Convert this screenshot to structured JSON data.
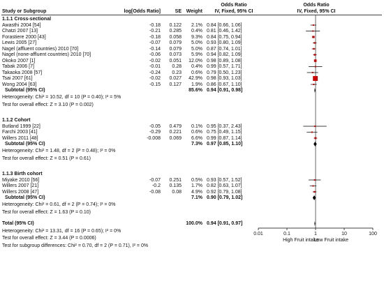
{
  "header": {
    "study": "Study or Subgroup",
    "logor": "log[Odds Ratio]",
    "se": "SE",
    "weight": "Weight",
    "or_title": "Odds Ratio",
    "or_sub": "IV, Fixed, 95% CI",
    "plot_title": "Odds Ratio",
    "plot_sub": "IV, Fixed, 95% CI"
  },
  "groups": [
    {
      "title": "1.1.1 Cross-sectional",
      "studies": [
        {
          "name": "Awasthi 2004 [54]",
          "logor": "-0.18",
          "se": "0.122",
          "weight": "2.1%",
          "ci": "0.84 [0.66, 1.06]"
        },
        {
          "name": "Chatzi 2007 [13]",
          "logor": "-0.21",
          "se": "0.285",
          "weight": "0.4%",
          "ci": "0.81 [0.46, 1.42]"
        },
        {
          "name": "Forastiere 2000 [43]",
          "logor": "-0.18",
          "se": "0.058",
          "weight": "9.3%",
          "ci": "0.84 [0.75, 0.94]"
        },
        {
          "name": "Lewis 2005 [27]",
          "logor": "-0.07",
          "se": "0.079",
          "weight": "5.0%",
          "ci": "0.93 [0.80, 1.09]"
        },
        {
          "name": "Nagel (affluent countries) 2010 [70]",
          "logor": "-0.14",
          "se": "0.079",
          "weight": "5.0%",
          "ci": "0.87 [0.74, 1.01]"
        },
        {
          "name": "Nagel (none-affluent countries) 2010 [70]",
          "logor": "-0.06",
          "se": "0.073",
          "weight": "5.9%",
          "ci": "0.94 [0.82, 1.09]"
        },
        {
          "name": "Okoko 2007 [1]",
          "logor": "-0.02",
          "se": "0.051",
          "weight": "12.0%",
          "ci": "0.98 [0.89, 1.08]"
        },
        {
          "name": "Tabak 2006 [7]",
          "logor": "-0.01",
          "se": "0.28",
          "weight": "0.4%",
          "ci": "0.99 [0.57, 1.71]"
        },
        {
          "name": "Takaoka 2008 [57]",
          "logor": "-0.24",
          "se": "0.23",
          "weight": "0.6%",
          "ci": "0.79 [0.50, 1.23]"
        },
        {
          "name": "Tsai 2007 [61]",
          "logor": "-0.02",
          "se": "0.027",
          "weight": "42.9%",
          "ci": "0.98 [0.93, 1.03]"
        },
        {
          "name": "Wong 2004 [63]",
          "logor": "-0.15",
          "se": "0.127",
          "weight": "1.9%",
          "ci": "0.86 [0.67, 1.10]"
        }
      ],
      "subtotal": {
        "label": "Subtotal (95% CI)",
        "weight": "85.6%",
        "ci": "0.94 [0.91, 0.98]"
      },
      "heterogeneity": "Heterogeneity: Chi² = 10.52, df = 10 (P = 0.40); I² = 5%",
      "effect": "Test for overall effect: Z = 3.10 (P = 0.002)"
    },
    {
      "title": "1.1.2 Cohort",
      "studies": [
        {
          "name": "Butland 1999 [22]",
          "logor": "-0.05",
          "se": "0.479",
          "weight": "0.1%",
          "ci": "0.95 [0.37, 2.43]"
        },
        {
          "name": "Farchi 2003 [41]",
          "logor": "-0.29",
          "se": "0.221",
          "weight": "0.6%",
          "ci": "0.75 [0.49, 1.15]"
        },
        {
          "name": "Willers 2011 [48]",
          "logor": "-0.008",
          "se": "0.069",
          "weight": "6.6%",
          "ci": "0.99 [0.87, 1.14]"
        }
      ],
      "subtotal": {
        "label": "Subtotal (95% CI)",
        "weight": "7.3%",
        "ci": "0.97 [0.85, 1.10]"
      },
      "heterogeneity": "Heterogeneity: Chi² = 1.48, df = 2 (P = 0.48); I² = 0%",
      "effect": "Test for overall effect: Z = 0.51 (P = 0.61)"
    },
    {
      "title": "1.1.3 Birth cohort",
      "studies": [
        {
          "name": "Miyake 2010 [56]",
          "logor": "-0.07",
          "se": "0.251",
          "weight": "0.5%",
          "ci": "0.93 [0.57, 1.52]"
        },
        {
          "name": "Willers 2007 [21]",
          "logor": "-0.2",
          "se": "0.135",
          "weight": "1.7%",
          "ci": "0.82 [0.63, 1.07]"
        },
        {
          "name": "Willers 2008 [47]",
          "logor": "-0.08",
          "se": "0.08",
          "weight": "4.9%",
          "ci": "0.92 [0.79, 1.08]"
        }
      ],
      "subtotal": {
        "label": "Subtotal (95% CI)",
        "weight": "7.1%",
        "ci": "0.90 [0.79, 1.02]"
      },
      "heterogeneity": "Heterogeneity: Chi² = 0.61, df = 2 (P = 0.74); I² = 0%",
      "effect": "Test for overall effect: Z = 1.63 (P = 0.10)"
    }
  ],
  "total": {
    "label": "Total (95% CI)",
    "weight": "100.0%",
    "ci": "0.94 [0.91, 0.97]",
    "heterogeneity": "Heterogeneity: Chi² = 13.31, df = 16 (P = 0.65); I² = 0%",
    "effect": "Test for overall effect: Z = 3.44 (P = 0.0006)",
    "subgroup": "Test for subgroup differences: Chi² = 0.70, df = 2 (P = 0.71), I² = 0%"
  },
  "colors": {
    "square": "#cc0000",
    "diamond": "#000000",
    "line": "#000000"
  },
  "chart_data": {
    "type": "scatter",
    "scale": "log",
    "xlim": [
      0.01,
      100
    ],
    "ticks": [
      "0.01",
      "0.1",
      "1",
      "10",
      "100"
    ],
    "tick_values": [
      0.01,
      0.1,
      1,
      10,
      100
    ],
    "left_label": "High Fruit intake",
    "right_label": "Low Fruit intake",
    "studies": [
      {
        "name": "Awasthi 2004 [54]",
        "or": 0.84,
        "lo": 0.66,
        "hi": 1.06,
        "weight": 2.1
      },
      {
        "name": "Chatzi 2007 [13]",
        "or": 0.81,
        "lo": 0.46,
        "hi": 1.42,
        "weight": 0.4
      },
      {
        "name": "Forastiere 2000 [43]",
        "or": 0.84,
        "lo": 0.75,
        "hi": 0.94,
        "weight": 9.3
      },
      {
        "name": "Lewis 2005 [27]",
        "or": 0.93,
        "lo": 0.8,
        "hi": 1.09,
        "weight": 5.0
      },
      {
        "name": "Nagel (affluent countries) 2010 [70]",
        "or": 0.87,
        "lo": 0.74,
        "hi": 1.01,
        "weight": 5.0
      },
      {
        "name": "Nagel (none-affluent countries) 2010 [70]",
        "or": 0.94,
        "lo": 0.82,
        "hi": 1.09,
        "weight": 5.9
      },
      {
        "name": "Okoko 2007 [1]",
        "or": 0.98,
        "lo": 0.89,
        "hi": 1.08,
        "weight": 12.0
      },
      {
        "name": "Tabak 2006 [7]",
        "or": 0.99,
        "lo": 0.57,
        "hi": 1.71,
        "weight": 0.4
      },
      {
        "name": "Takaoka 2008 [57]",
        "or": 0.79,
        "lo": 0.5,
        "hi": 1.23,
        "weight": 0.6
      },
      {
        "name": "Tsai 2007 [61]",
        "or": 0.98,
        "lo": 0.93,
        "hi": 1.03,
        "weight": 42.9
      },
      {
        "name": "Wong 2004 [63]",
        "or": 0.86,
        "lo": 0.67,
        "hi": 1.1,
        "weight": 1.9
      },
      {
        "name": "Butland 1999 [22]",
        "or": 0.95,
        "lo": 0.37,
        "hi": 2.43,
        "weight": 0.1
      },
      {
        "name": "Farchi 2003 [41]",
        "or": 0.75,
        "lo": 0.49,
        "hi": 1.15,
        "weight": 0.6
      },
      {
        "name": "Willers 2011 [48]",
        "or": 0.99,
        "lo": 0.87,
        "hi": 1.14,
        "weight": 6.6
      },
      {
        "name": "Miyake 2010 [56]",
        "or": 0.93,
        "lo": 0.57,
        "hi": 1.52,
        "weight": 0.5
      },
      {
        "name": "Willers 2007 [21]",
        "or": 0.82,
        "lo": 0.63,
        "hi": 1.07,
        "weight": 1.7
      },
      {
        "name": "Willers 2008 [47]",
        "or": 0.92,
        "lo": 0.79,
        "hi": 1.08,
        "weight": 4.9
      }
    ],
    "subtotals": [
      {
        "name": "Subtotal 1.1.1",
        "or": 0.94,
        "lo": 0.91,
        "hi": 0.98
      },
      {
        "name": "Subtotal 1.1.2",
        "or": 0.97,
        "lo": 0.85,
        "hi": 1.1
      },
      {
        "name": "Subtotal 1.1.3",
        "or": 0.9,
        "lo": 0.79,
        "hi": 1.02
      },
      {
        "name": "Total",
        "or": 0.94,
        "lo": 0.91,
        "hi": 0.97
      }
    ]
  }
}
